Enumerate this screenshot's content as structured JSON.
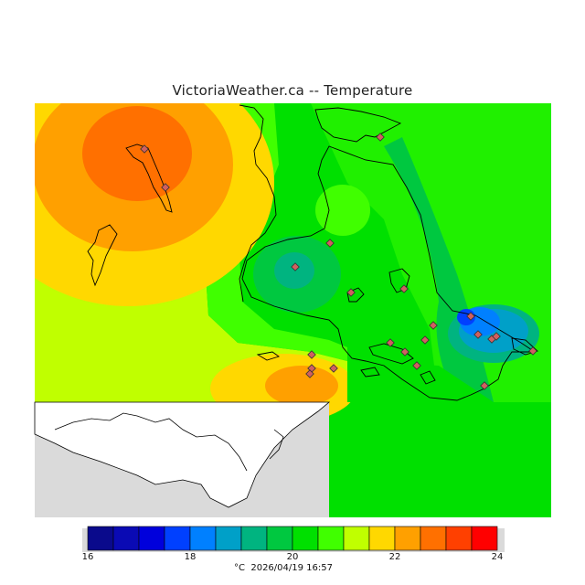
{
  "title": "VictoriaWeather.ca -- Temperature",
  "footer": {
    "unit": "°C",
    "timestamp": "2026/04/19 16:57"
  },
  "legend": {
    "min": 16,
    "max": 24,
    "ticks": [
      "16",
      "18",
      "20",
      "22",
      "24"
    ],
    "colors": [
      "#0a0a8c",
      "#0a0ab4",
      "#0000dc",
      "#0040ff",
      "#0080ff",
      "#00a0c8",
      "#00b480",
      "#00c840",
      "#00e000",
      "#40ff00",
      "#c0ff00",
      "#ffd800",
      "#ffa000",
      "#ff7000",
      "#ff4000",
      "#ff0000"
    ]
  },
  "colors": {
    "no_data": "#dadada",
    "land_mask": "#ffffff",
    "outline": "#000000",
    "station_marker": "#d06060"
  }
}
